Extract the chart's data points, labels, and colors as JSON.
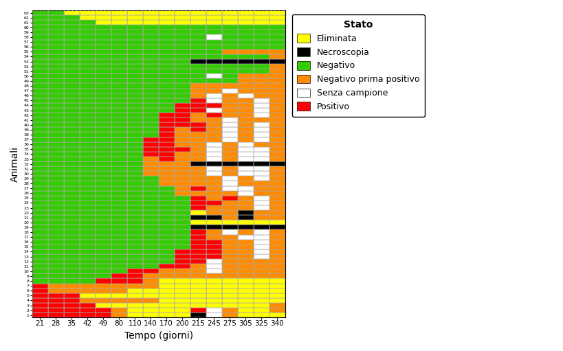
{
  "time_points": [
    21,
    28,
    35,
    42,
    49,
    80,
    110,
    140,
    170,
    200,
    215,
    245,
    275,
    305,
    325,
    340
  ],
  "n_animals": 63,
  "color_map": {
    "G": "#33CC00",
    "Y": "#FFFF00",
    "R": "#FF0000",
    "O": "#FF8C00",
    "W": "#FFFFFF",
    "B": "#000000"
  },
  "legend_labels": [
    "Eliminata",
    "Necroscopia",
    "Negativo",
    "Negativo prima positivo",
    "Senza campione",
    "Positivo"
  ],
  "legend_colors": [
    "#FFFF00",
    "#000000",
    "#33CC00",
    "#FF8C00",
    "#FFFFFF",
    "#FF0000"
  ],
  "xlabel": "Tempo (giorni)",
  "ylabel": "Animali",
  "grid_color": "#AAAAAA",
  "animal_data": [
    [
      "R",
      "R",
      "R",
      "R",
      "R",
      "O",
      "Y",
      "Y",
      "Y",
      "Y",
      "B",
      "W",
      "O",
      "Y",
      "Y",
      "Y"
    ],
    [
      "R",
      "R",
      "R",
      "R",
      "R",
      "O",
      "Y",
      "Y",
      "Y",
      "Y",
      "R",
      "W",
      "O",
      "Y",
      "Y",
      "O"
    ],
    [
      "R",
      "R",
      "R",
      "R",
      "Y",
      "Y",
      "Y",
      "Y",
      "Y",
      "Y",
      "Y",
      "Y",
      "Y",
      "Y",
      "Y",
      "O"
    ],
    [
      "R",
      "R",
      "R",
      "O",
      "O",
      "O",
      "O",
      "O",
      "Y",
      "Y",
      "Y",
      "Y",
      "Y",
      "Y",
      "Y",
      "Y"
    ],
    [
      "R",
      "R",
      "R",
      "Y",
      "Y",
      "Y",
      "Y",
      "Y",
      "Y",
      "Y",
      "Y",
      "Y",
      "Y",
      "Y",
      "Y",
      "Y"
    ],
    [
      "R",
      "O",
      "O",
      "O",
      "O",
      "O",
      "Y",
      "Y",
      "Y",
      "Y",
      "Y",
      "Y",
      "Y",
      "Y",
      "Y",
      "Y"
    ],
    [
      "R",
      "O",
      "O",
      "O",
      "O",
      "O",
      "O",
      "O",
      "Y",
      "Y",
      "Y",
      "Y",
      "Y",
      "Y",
      "Y",
      "Y"
    ],
    [
      "G",
      "G",
      "G",
      "G",
      "R",
      "R",
      "R",
      "O",
      "Y",
      "Y",
      "Y",
      "Y",
      "Y",
      "Y",
      "Y",
      "Y"
    ],
    [
      "G",
      "G",
      "G",
      "G",
      "G",
      "R",
      "R",
      "O",
      "O",
      "O",
      "O",
      "O",
      "O",
      "O",
      "O",
      "O"
    ],
    [
      "G",
      "G",
      "G",
      "G",
      "G",
      "G",
      "R",
      "R",
      "O",
      "O",
      "O",
      "W",
      "O",
      "O",
      "O",
      "O"
    ],
    [
      "G",
      "G",
      "G",
      "G",
      "G",
      "G",
      "G",
      "G",
      "R",
      "R",
      "O",
      "W",
      "O",
      "O",
      "O",
      "O"
    ],
    [
      "G",
      "G",
      "G",
      "G",
      "G",
      "G",
      "G",
      "G",
      "G",
      "R",
      "R",
      "W",
      "O",
      "O",
      "O",
      "O"
    ],
    [
      "G",
      "G",
      "G",
      "G",
      "G",
      "G",
      "G",
      "G",
      "G",
      "R",
      "R",
      "R",
      "O",
      "O",
      "W",
      "O"
    ],
    [
      "G",
      "G",
      "G",
      "G",
      "G",
      "G",
      "G",
      "G",
      "G",
      "R",
      "R",
      "R",
      "O",
      "O",
      "W",
      "O"
    ],
    [
      "G",
      "G",
      "G",
      "G",
      "G",
      "G",
      "G",
      "G",
      "G",
      "G",
      "R",
      "R",
      "O",
      "O",
      "W",
      "O"
    ],
    [
      "G",
      "G",
      "G",
      "G",
      "G",
      "G",
      "G",
      "G",
      "G",
      "G",
      "R",
      "R",
      "O",
      "O",
      "W",
      "O"
    ],
    [
      "G",
      "G",
      "G",
      "G",
      "G",
      "G",
      "G",
      "G",
      "G",
      "G",
      "R",
      "O",
      "O",
      "W",
      "W",
      "O"
    ],
    [
      "G",
      "G",
      "G",
      "G",
      "G",
      "G",
      "G",
      "G",
      "G",
      "G",
      "R",
      "O",
      "W",
      "O",
      "W",
      "O"
    ],
    [
      "G",
      "G",
      "G",
      "G",
      "G",
      "G",
      "G",
      "G",
      "G",
      "G",
      "B",
      "B",
      "B",
      "B",
      "B",
      "B"
    ],
    [
      "G",
      "G",
      "G",
      "G",
      "G",
      "G",
      "G",
      "G",
      "G",
      "G",
      "Y",
      "Y",
      "Y",
      "Y",
      "Y",
      "Y"
    ],
    [
      "G",
      "G",
      "G",
      "G",
      "G",
      "G",
      "G",
      "G",
      "G",
      "G",
      "B",
      "B",
      "O",
      "B",
      "O",
      "O"
    ],
    [
      "G",
      "G",
      "G",
      "G",
      "G",
      "G",
      "G",
      "G",
      "G",
      "G",
      "Y",
      "O",
      "O",
      "B",
      "O",
      "O"
    ],
    [
      "G",
      "G",
      "G",
      "G",
      "G",
      "G",
      "G",
      "G",
      "G",
      "G",
      "R",
      "O",
      "O",
      "O",
      "W",
      "O"
    ],
    [
      "G",
      "G",
      "G",
      "G",
      "G",
      "G",
      "G",
      "G",
      "G",
      "G",
      "R",
      "R",
      "O",
      "O",
      "W",
      "O"
    ],
    [
      "G",
      "G",
      "G",
      "G",
      "G",
      "G",
      "G",
      "G",
      "G",
      "G",
      "R",
      "O",
      "R",
      "O",
      "W",
      "O"
    ],
    [
      "G",
      "G",
      "G",
      "G",
      "G",
      "G",
      "G",
      "G",
      "G",
      "O",
      "O",
      "O",
      "O",
      "W",
      "O",
      "O"
    ],
    [
      "G",
      "G",
      "G",
      "G",
      "G",
      "G",
      "G",
      "G",
      "G",
      "O",
      "R",
      "O",
      "W",
      "W",
      "O",
      "O"
    ],
    [
      "G",
      "G",
      "G",
      "G",
      "G",
      "G",
      "G",
      "G",
      "O",
      "O",
      "O",
      "O",
      "W",
      "O",
      "O",
      "O"
    ],
    [
      "G",
      "G",
      "G",
      "G",
      "G",
      "G",
      "G",
      "G",
      "O",
      "O",
      "O",
      "O",
      "W",
      "O",
      "W",
      "O"
    ],
    [
      "G",
      "G",
      "G",
      "G",
      "G",
      "G",
      "G",
      "O",
      "O",
      "O",
      "O",
      "W",
      "O",
      "W",
      "W",
      "O"
    ],
    [
      "G",
      "G",
      "G",
      "G",
      "G",
      "G",
      "G",
      "O",
      "O",
      "O",
      "O",
      "W",
      "O",
      "W",
      "W",
      "O"
    ],
    [
      "G",
      "G",
      "G",
      "G",
      "G",
      "G",
      "G",
      "O",
      "O",
      "O",
      "B",
      "B",
      "B",
      "B",
      "B",
      "B"
    ],
    [
      "G",
      "G",
      "G",
      "G",
      "G",
      "G",
      "G",
      "O",
      "R",
      "O",
      "O",
      "W",
      "O",
      "W",
      "W",
      "O"
    ],
    [
      "G",
      "G",
      "G",
      "G",
      "G",
      "G",
      "G",
      "R",
      "R",
      "O",
      "O",
      "W",
      "O",
      "W",
      "W",
      "O"
    ],
    [
      "G",
      "G",
      "G",
      "G",
      "G",
      "G",
      "G",
      "R",
      "R",
      "R",
      "O",
      "W",
      "O",
      "W",
      "W",
      "O"
    ],
    [
      "G",
      "G",
      "G",
      "G",
      "G",
      "G",
      "G",
      "R",
      "R",
      "O",
      "O",
      "W",
      "O",
      "W",
      "O",
      "O"
    ],
    [
      "G",
      "G",
      "G",
      "G",
      "G",
      "G",
      "G",
      "R",
      "R",
      "O",
      "O",
      "O",
      "W",
      "O",
      "W",
      "O"
    ],
    [
      "G",
      "G",
      "G",
      "G",
      "G",
      "G",
      "G",
      "G",
      "R",
      "O",
      "O",
      "O",
      "W",
      "O",
      "W",
      "O"
    ],
    [
      "G",
      "G",
      "G",
      "G",
      "G",
      "G",
      "G",
      "G",
      "R",
      "O",
      "R",
      "O",
      "W",
      "O",
      "W",
      "O"
    ],
    [
      "G",
      "G",
      "G",
      "G",
      "G",
      "G",
      "G",
      "G",
      "R",
      "R",
      "R",
      "O",
      "W",
      "O",
      "W",
      "O"
    ],
    [
      "G",
      "G",
      "G",
      "G",
      "G",
      "G",
      "G",
      "G",
      "R",
      "R",
      "O",
      "O",
      "W",
      "O",
      "O",
      "O"
    ],
    [
      "G",
      "G",
      "G",
      "G",
      "G",
      "G",
      "G",
      "G",
      "R",
      "R",
      "O",
      "R",
      "O",
      "O",
      "W",
      "O"
    ],
    [
      "G",
      "G",
      "G",
      "G",
      "G",
      "G",
      "G",
      "G",
      "G",
      "R",
      "R",
      "W",
      "O",
      "O",
      "W",
      "O"
    ],
    [
      "G",
      "G",
      "G",
      "G",
      "G",
      "G",
      "G",
      "G",
      "G",
      "R",
      "R",
      "R",
      "O",
      "O",
      "W",
      "O"
    ],
    [
      "G",
      "G",
      "G",
      "G",
      "G",
      "G",
      "G",
      "G",
      "G",
      "G",
      "R",
      "W",
      "O",
      "O",
      "W",
      "O"
    ],
    [
      "G",
      "G",
      "G",
      "G",
      "G",
      "G",
      "G",
      "G",
      "G",
      "G",
      "O",
      "W",
      "O",
      "W",
      "O",
      "O"
    ],
    [
      "G",
      "G",
      "G",
      "G",
      "G",
      "G",
      "G",
      "G",
      "G",
      "G",
      "O",
      "O",
      "W",
      "O",
      "O",
      "O"
    ],
    [
      "G",
      "G",
      "G",
      "G",
      "G",
      "G",
      "G",
      "G",
      "G",
      "G",
      "O",
      "O",
      "O",
      "O",
      "O",
      "O"
    ],
    [
      "G",
      "G",
      "G",
      "G",
      "G",
      "G",
      "G",
      "G",
      "G",
      "G",
      "G",
      "G",
      "G",
      "O",
      "O",
      "O"
    ],
    [
      "G",
      "G",
      "G",
      "G",
      "G",
      "G",
      "G",
      "G",
      "G",
      "G",
      "G",
      "W",
      "G",
      "O",
      "O",
      "O"
    ],
    [
      "G",
      "G",
      "G",
      "G",
      "G",
      "G",
      "G",
      "G",
      "G",
      "G",
      "G",
      "G",
      "G",
      "G",
      "G",
      "O"
    ],
    [
      "G",
      "G",
      "G",
      "G",
      "G",
      "G",
      "G",
      "G",
      "G",
      "G",
      "G",
      "G",
      "G",
      "G",
      "G",
      "O"
    ],
    [
      "G",
      "G",
      "G",
      "G",
      "G",
      "G",
      "G",
      "G",
      "G",
      "G",
      "B",
      "B",
      "B",
      "B",
      "B",
      "B"
    ],
    [
      "G",
      "G",
      "G",
      "G",
      "G",
      "G",
      "G",
      "G",
      "G",
      "G",
      "G",
      "G",
      "G",
      "G",
      "G",
      "O"
    ],
    [
      "G",
      "G",
      "G",
      "G",
      "G",
      "G",
      "G",
      "G",
      "G",
      "G",
      "G",
      "G",
      "O",
      "O",
      "O",
      "O"
    ],
    [
      "G",
      "G",
      "G",
      "G",
      "G",
      "G",
      "G",
      "G",
      "G",
      "G",
      "G",
      "G",
      "G",
      "G",
      "G",
      "G"
    ],
    [
      "G",
      "G",
      "G",
      "G",
      "G",
      "G",
      "G",
      "G",
      "G",
      "G",
      "G",
      "G",
      "G",
      "G",
      "G",
      "G"
    ],
    [
      "G",
      "G",
      "G",
      "G",
      "G",
      "G",
      "G",
      "G",
      "G",
      "G",
      "G",
      "W",
      "G",
      "G",
      "G",
      "G"
    ],
    [
      "G",
      "G",
      "G",
      "G",
      "G",
      "G",
      "G",
      "G",
      "G",
      "G",
      "G",
      "G",
      "G",
      "G",
      "G",
      "G"
    ],
    [
      "G",
      "G",
      "G",
      "G",
      "G",
      "G",
      "G",
      "G",
      "G",
      "G",
      "G",
      "G",
      "G",
      "G",
      "G",
      "G"
    ],
    [
      "G",
      "G",
      "G",
      "G",
      "Y",
      "Y",
      "Y",
      "Y",
      "Y",
      "Y",
      "Y",
      "Y",
      "Y",
      "Y",
      "Y",
      "Y"
    ],
    [
      "G",
      "G",
      "G",
      "Y",
      "Y",
      "Y",
      "Y",
      "Y",
      "Y",
      "Y",
      "Y",
      "Y",
      "Y",
      "Y",
      "Y",
      "Y"
    ],
    [
      "G",
      "G",
      "Y",
      "Y",
      "Y",
      "Y",
      "Y",
      "Y",
      "Y",
      "Y",
      "Y",
      "Y",
      "Y",
      "Y",
      "Y",
      "Y"
    ]
  ]
}
